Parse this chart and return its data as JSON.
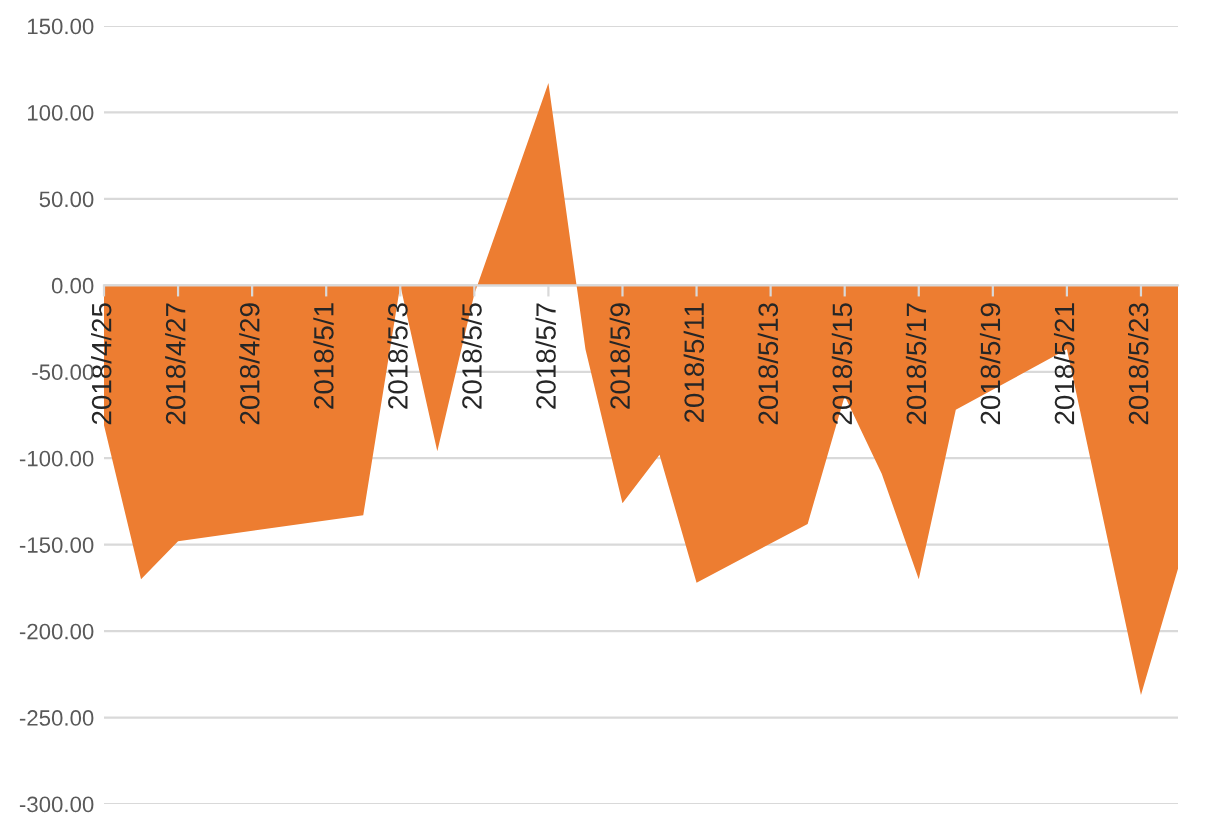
{
  "chart_data": {
    "type": "area",
    "x": [
      "2018-04-25",
      "2018-04-26",
      "2018-04-27",
      "2018-05-02",
      "2018-05-03",
      "2018-05-04",
      "2018-05-05",
      "2018-05-07",
      "2018-05-08",
      "2018-05-09",
      "2018-05-10",
      "2018-05-11",
      "2018-05-14",
      "2018-05-15",
      "2018-05-16",
      "2018-05-17",
      "2018-05-18",
      "2018-05-21",
      "2018-05-23",
      "2018-05-24"
    ],
    "series": [
      {
        "color": "#ed7d31",
        "values": [
          -81,
          -170,
          -148,
          -133,
          0,
          -96,
          -5,
          117,
          -37,
          -126,
          -98,
          -172,
          -138,
          -64,
          -109,
          -170,
          -72,
          -37,
          -237,
          -164
        ]
      }
    ],
    "xlim": [
      "2018-04-25",
      "2018-05-24"
    ],
    "xticks": [
      {
        "value": "2018-04-25",
        "label": "2018/4/25"
      },
      {
        "value": "2018-04-27",
        "label": "2018/4/27"
      },
      {
        "value": "2018-04-29",
        "label": "2018/4/29"
      },
      {
        "value": "2018-05-01",
        "label": "2018/5/1"
      },
      {
        "value": "2018-05-03",
        "label": "2018/5/3"
      },
      {
        "value": "2018-05-05",
        "label": "2018/5/5"
      },
      {
        "value": "2018-05-07",
        "label": "2018/5/7"
      },
      {
        "value": "2018-05-09",
        "label": "2018/5/9"
      },
      {
        "value": "2018-05-11",
        "label": "2018/5/11"
      },
      {
        "value": "2018-05-13",
        "label": "2018/5/13"
      },
      {
        "value": "2018-05-15",
        "label": "2018/5/15"
      },
      {
        "value": "2018-05-17",
        "label": "2018/5/17"
      },
      {
        "value": "2018-05-19",
        "label": "2018/5/19"
      },
      {
        "value": "2018-05-21",
        "label": "2018/5/21"
      },
      {
        "value": "2018-05-23",
        "label": "2018/5/23"
      }
    ],
    "ylim": [
      -300,
      150
    ],
    "yticks": [
      {
        "value": 150,
        "label": "150.00"
      },
      {
        "value": 100,
        "label": "100.00"
      },
      {
        "value": 50,
        "label": "50.00"
      },
      {
        "value": 0,
        "label": "0.00"
      },
      {
        "value": -50,
        "label": "-50.00"
      },
      {
        "value": -100,
        "label": "-100.00"
      },
      {
        "value": -150,
        "label": "-150.00"
      },
      {
        "value": -200,
        "label": "-200.00"
      },
      {
        "value": -250,
        "label": "-250.00"
      },
      {
        "value": -300,
        "label": "-300.00"
      }
    ],
    "grid": "y",
    "legend": false
  }
}
